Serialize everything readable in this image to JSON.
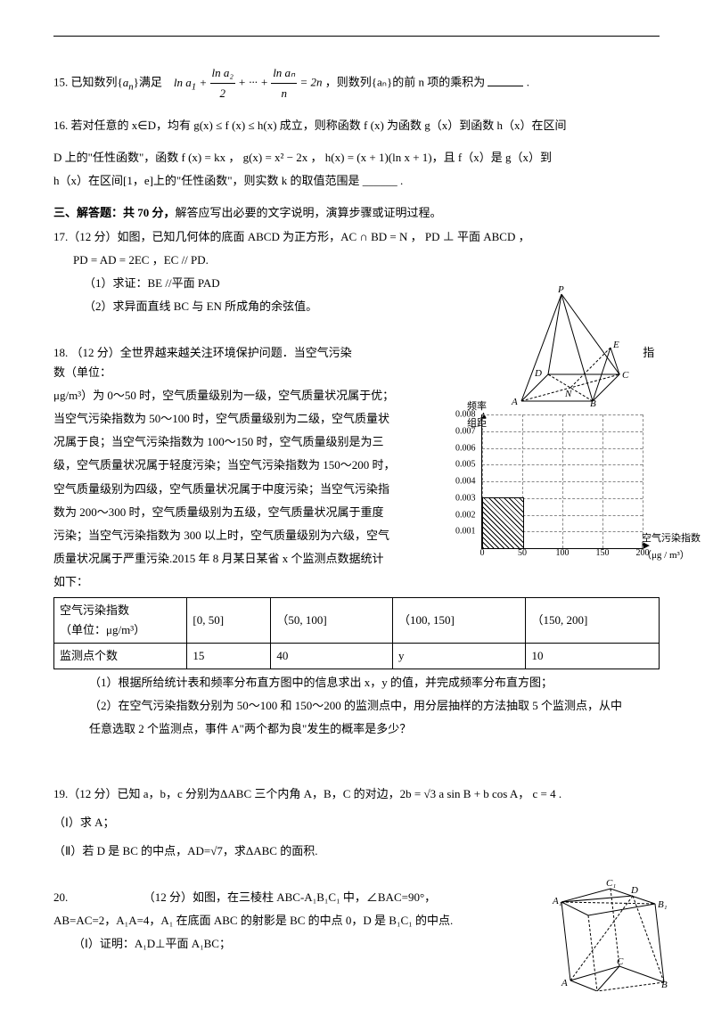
{
  "q15": {
    "prefix": "15. 已知数列{",
    "an": "a",
    "sub": "n",
    "mid1": "}满足",
    "formula_lhs": "ln a₁ +",
    "frac2_num": "ln a₂",
    "frac2_den": "2",
    "dots": "+ ··· +",
    "fracn_num": "ln aₙ",
    "fracn_den": "n",
    "eq": "= 2n",
    "tail": "，则数列{aₙ}的前 n 项的乘积为",
    "blank": "____ ."
  },
  "q16": {
    "line1_a": "16. 若对任意的 x∈D，均有 g(x) ≤ f (x) ≤ h(x) 成立，则称函数 f (x) 为函数 g（x）到函数 h（x）在区间",
    "line2": "D 上的\"任性函数\"，函数 f (x) = kx ， g(x) = x² − 2x ， h(x) = (x + 1)(ln x + 1)，且 f（x）是 g（x）到",
    "line3": "h（x）在区间[1，e]上的\"任性函数\"，则实数 k 的取值范围是 ______ ."
  },
  "section3": {
    "title": "三、解答题：共 70 分，",
    "rest": "解答应写出必要的文字说明，演算步骤或证明过程。"
  },
  "q17": {
    "l1": "17.（12 分）如图，已知几何体的底面   ABCD   为正方形，AC ∩ BD = N  ， PD ⊥ 平面 ABCD  ，",
    "l2": "PD = AD = 2EC  ，EC // PD.",
    "p1": "（1）求证：BE //平面 PAD",
    "p2": "（2）求异面直线  BC 与  EN  所成角的余弦值。"
  },
  "q18": {
    "l1": "18.  （12 分）全世界越来越关注环境保护问题．当空气污染",
    "tail1": "指数（单位：",
    "lines": [
      "μg/m³）为 0～50 时，空气质量级别为一级，空气质量状况属于优；",
      "当空气污染指数为 50～100 时，空气质量级别为二级，空气质量状",
      "况属于良；当空气污染指数为 100～150 时，空气质量级别是为三",
      "级，空气质量状况属于轻度污染；当空气污染指数为 150～200 时，",
      "空气质量级别为四级，空气质量状况属于中度污染；当空气污染指",
      "数为 200～300 时，空气质量级别为五级，空气质量状况属于重度",
      "污染；当空气污染指数为 300 以上时，空气质量级别为六级，空气",
      "质量状况属于严重污染.2015 年 8 月某日某省 x 个监测点数据统计",
      "如下："
    ],
    "table": {
      "r1": [
        "空气污染指数\n（单位：μg/m³）",
        "[0, 50]",
        "（50, 100]",
        "（100, 150]",
        "（150, 200]"
      ],
      "r2": [
        "监测点个数",
        "15",
        "40",
        "y",
        "10"
      ]
    },
    "p1": "（1）根据所给统计表和频率分布直方图中的信息求出 x，y 的值，并完成频率分布直方图；",
    "p2": "（2）在空气污染指数分别为 50～100 和 150～200 的监测点中，用分层抽样的方法抽取 5 个监测点，从中",
    "p2b": "任意选取 2 个监测点，事件 A\"两个都为良\"发生的概率是多少？"
  },
  "histogram": {
    "y_label": "频率\n组距",
    "x_label": "空气污染指数\n（μg / m³）",
    "y_ticks": [
      {
        "v": "0.001",
        "pos": 12.5
      },
      {
        "v": "0.002",
        "pos": 25
      },
      {
        "v": "0.003",
        "pos": 37.5
      },
      {
        "v": "0.004",
        "pos": 50
      },
      {
        "v": "0.005",
        "pos": 62.5
      },
      {
        "v": "0.006",
        "pos": 75
      },
      {
        "v": "0.007",
        "pos": 87.5
      },
      {
        "v": "0.008",
        "pos": 100
      }
    ],
    "x_ticks": [
      {
        "v": "0",
        "pos": 0
      },
      {
        "v": "50",
        "pos": 25
      },
      {
        "v": "100",
        "pos": 50
      },
      {
        "v": "150",
        "pos": 75
      },
      {
        "v": "200",
        "pos": 100
      }
    ],
    "bars": [
      {
        "left": 0,
        "width": 25,
        "height": 37.5,
        "hatched": true
      }
    ]
  },
  "q19": {
    "l1": "19.（12 分）已知 a，b，c 分别为ΔABC 三个内角 A，B，C 的对边，2b = √3 a sin B + b cos A， c = 4 .",
    "p1": "（Ⅰ）求 A；",
    "p2": "（Ⅱ）若 D 是 BC 的中点，AD=√7，求ΔABC 的面积."
  },
  "q20": {
    "l1": "20.                          （12 分）如图，在三棱柱 ABC-A₁B₁C₁ 中，∠BAC=90°，",
    "l2": "AB=AC=2，A₁A=4，A₁ 在底面 ABC 的射影是 BC 的中点 0，D 是 B₁C₁ 的中点.",
    "p1": "（Ⅰ）证明：A₁D⊥平面 A₁BC；"
  },
  "fig17": {
    "P": "P",
    "D": "D",
    "A": "A",
    "N": "N",
    "B": "B",
    "C": "C",
    "E": "E"
  },
  "fig20": {
    "A": "A",
    "B": "B",
    "C": "C",
    "A1": "A₁",
    "B1": "B₁",
    "C1": "C₁",
    "D": "D"
  },
  "colors": {
    "fg": "#000000",
    "bg": "#ffffff",
    "grid": "#888888"
  }
}
